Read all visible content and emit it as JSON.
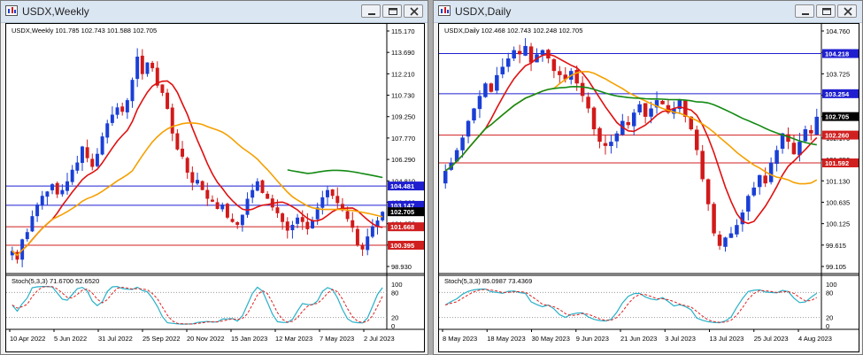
{
  "weekly": {
    "title": "USDX,Weekly",
    "info": "USDX,Weekly  101.785 102.743 101.588 102.705",
    "price_ticks": [
      "115.170",
      "113.690",
      "112.210",
      "110.730",
      "109.250",
      "107.770",
      "106.290",
      "104.810",
      "103.330",
      "101.850",
      "100.370",
      "98.930"
    ],
    "level_labels": [
      {
        "text": "104.481",
        "color": "#1f1fd0"
      },
      {
        "text": "103.147",
        "color": "#1f1fd0"
      },
      {
        "text": "102.705",
        "color": "#000000"
      },
      {
        "text": "101.668",
        "color": "#d01f1f"
      },
      {
        "text": "100.395",
        "color": "#d01f1f"
      }
    ],
    "stoch_label": "Stoch(5,3,3) 71.6700 52.6520",
    "stoch_ticks": [
      "100",
      "80",
      "20",
      "0"
    ],
    "date_labels": [
      "10 Apr 2022",
      "5 Jun 2022",
      "31 Jul 2022",
      "25 Sep 2022",
      "20 Nov 2022",
      "15 Jan 2023",
      "12 Mar 2023",
      "7 May 2023",
      "2 Jul 2023"
    ]
  },
  "daily": {
    "title": "USDX,Daily",
    "info": "USDX,Daily  102.468 102.743 102.248 102.705",
    "price_ticks": [
      "104.760",
      "104.245",
      "103.725",
      "103.205",
      "102.690",
      "102.170",
      "101.650",
      "101.130",
      "100.635",
      "100.125",
      "99.615",
      "99.105"
    ],
    "level_labels": [
      {
        "text": "104.218",
        "color": "#1f1fd0"
      },
      {
        "text": "103.254",
        "color": "#1f1fd0"
      },
      {
        "text": "102.705",
        "color": "#000000"
      },
      {
        "text": "102.260",
        "color": "#d01f1f"
      },
      {
        "text": "101.592",
        "color": "#d01f1f"
      }
    ],
    "stoch_label": "Stoch(5,3,3) 85.0987 73.4369",
    "stoch_ticks": [
      "100",
      "80",
      "20",
      "0"
    ],
    "date_labels": [
      "8 May 2023",
      "18 May 2023",
      "30 May 2023",
      "9 Jun 2023",
      "21 Jun 2023",
      "3 Jul 2023",
      "13 Jul 2023",
      "25 Jul 2023",
      "4 Aug 2023"
    ]
  },
  "colors": {
    "bull": "#1a3fd6",
    "bear": "#d11a1a",
    "ma_red": "#e01010",
    "ma_orange": "#f5a000",
    "ma_green": "#138a13",
    "stoch_main": "#27b0c8",
    "stoch_signal": "#e02020"
  }
}
